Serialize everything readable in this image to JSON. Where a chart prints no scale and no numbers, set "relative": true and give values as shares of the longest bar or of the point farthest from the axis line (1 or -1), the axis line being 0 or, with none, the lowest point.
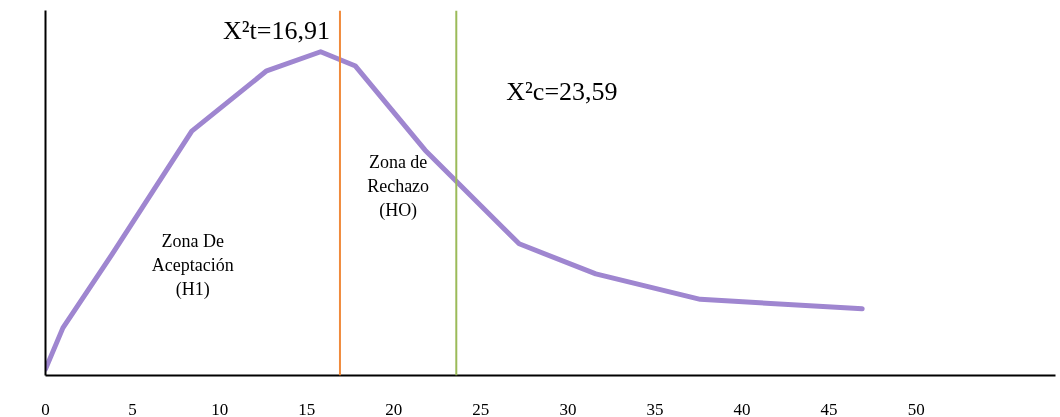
{
  "chart_data": {
    "type": "line",
    "relative": true,
    "tick_labels": "x",
    "grid": false,
    "marker": "none",
    "line_style": "solid",
    "xlim": [
      0,
      58
    ],
    "xticks": [
      0,
      5,
      10,
      15,
      20,
      25,
      30,
      35,
      40,
      45,
      50
    ],
    "x": [
      0,
      1.0,
      3.8,
      8.4,
      12.7,
      15.8,
      17.8,
      21.8,
      27.2,
      31.6,
      37.6,
      46.9
    ],
    "series": [
      {
        "color": "#9f86d0",
        "values": [
          0,
          0.13,
          0.36,
          0.75,
          0.94,
          1.0,
          0.955,
          0.69,
          0.395,
          0.3,
          0.22,
          0.19
        ]
      }
    ],
    "ref_lines": [
      {
        "axis": "x",
        "value": 16.91,
        "label": "X²t=16,91",
        "color": "#f08a3c"
      },
      {
        "axis": "x",
        "value": 23.59,
        "label": "X²c=23,59",
        "color": "#9bbb59"
      }
    ],
    "annotations": [
      "Zona De\nAceptación\n(H1)",
      "Zona de\nRechazo\n(HO)"
    ]
  }
}
